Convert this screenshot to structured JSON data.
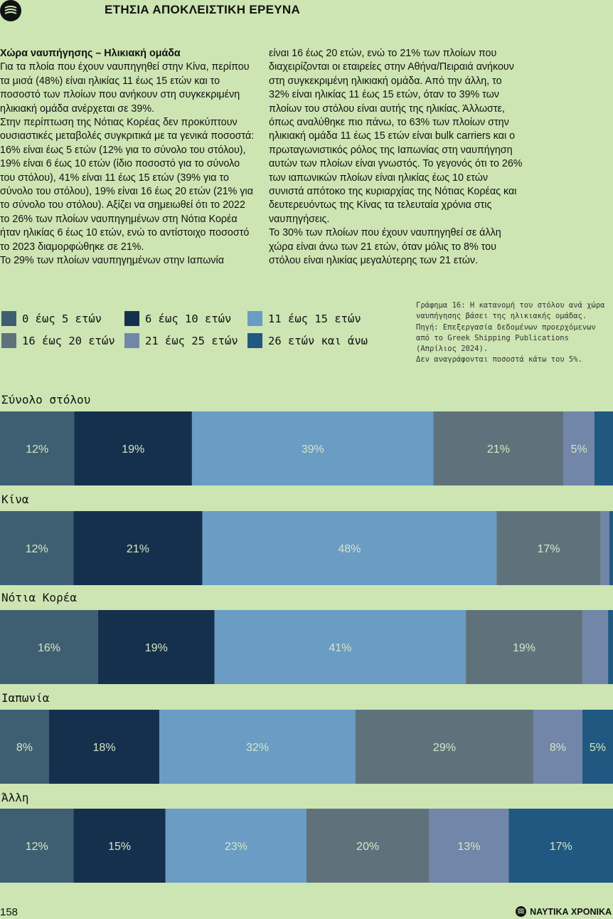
{
  "header": {
    "title": "ΕΤΗΣΙΑ ΑΠΟΚΛΕΙΣΤΙΚΗ ΕΡΕΥΝΑ"
  },
  "article": {
    "subheading": "Χώρα ναυπήγησης – Ηλικιακή ομάδα",
    "left_paragraphs": [
      "Για τα πλοία που έχουν ναυπηγηθεί στην Κίνα, περίπου τα μισά (48%) είναι ηλικίας 11 έως 15 ετών και το ποσοστό των πλοίων που ανήκουν στη συγκεκριμένη ηλικιακή ομάδα ανέρχεται σε 39%.",
      "Στην περίπτωση της Νότιας Κορέας δεν προκύπτουν ουσιαστικές μεταβολές συγκριτικά με τα γενικά ποσοστά: 16% είναι έως 5 ετών (12% για το σύνολο του στόλου), 19% είναι 6 έως 10 ετών (ίδιο ποσοστό για το σύνολο του στόλου), 41% είναι 11 έως 15 ετών (39% για το σύνολο του στόλου), 19% είναι 16 έως 20 ετών (21% για το σύνολο του στόλου). Αξίζει να σημειωθεί ότι το 2022 το 26% των πλοίων ναυπηγημένων στη Νότια Κορέα ήταν ηλικίας 6 έως 10 ετών, ενώ το αντίστοιχο ποσοστό το 2023 διαμορφώθηκε σε 21%.",
      "Το 29% των πλοίων ναυπηγημένων στην Ιαπωνία"
    ],
    "right_paragraphs": [
      "είναι 16 έως 20 ετών, ενώ το 21% των πλοίων που διαχειρίζονται οι εταιρείες στην Αθήνα/Πειραιά ανήκουν στη συγκεκριμένη ηλικιακή ομάδα. Από την άλλη, το 32% είναι ηλικίας 11 έως 15 ετών, όταν το 39% των πλοίων του στόλου είναι αυτής της ηλικίας. Άλλωστε, όπως αναλύθηκε πιο πάνω, το 63% των πλοίων στην ηλικιακή ομάδα 11 έως 15 ετών είναι bulk carriers και ο πρωταγωνιστικός ρόλος της Ιαπωνίας στη ναυπήγηση αυτών των πλοίων είναι γνωστός. Το γεγονός ότι το 26% των ιαπωνικών πλοίων είναι ηλικίας έως 10 ετών συνιστά απότοκο της κυριαρχίας της Νότιας Κορέας και δευτερευόντως της Κίνας τα τελευταία χρόνια στις ναυπηγήσεις.",
      "Το 30% των πλοίων που έχουν ναυπηγηθεί σε άλλη χώρα είναι άνω των 21 ετών, όταν μόλις το 8% του στόλου είναι ηλικίας μεγαλύτερης των 21 ετών."
    ]
  },
  "caption": [
    "Γράφημα 16: Η κατανομή του στόλου ανά χώρα ναυπήγησης βάσει της ηλικιακής ομάδας.",
    "Πηγή: Επεξεργασία δεδομένων προερχόμενων από το Greek Shipping Publications (Απρίλιος 2024).",
    "Δεν αναγράφονται ποσοστά κάτω του 5%."
  ],
  "colors": {
    "background": "#cde5b3",
    "text_on_bar": "#d6e6c4"
  },
  "chart_data": {
    "type": "bar",
    "orientation": "horizontal-stacked-100",
    "label_threshold": 5,
    "series": [
      {
        "name": "0 έως 5 ετών",
        "color": "#3e5f72"
      },
      {
        "name": "6 έως 10 ετών",
        "color": "#15304d"
      },
      {
        "name": "11 έως 15 ετών",
        "color": "#6a9cc4"
      },
      {
        "name": "16 έως 20 ετών",
        "color": "#5f727c"
      },
      {
        "name": "21 έως 25 ετών",
        "color": "#7186a8"
      },
      {
        "name": "26 ετών και άνω",
        "color": "#215881"
      }
    ],
    "groups": [
      {
        "label": "Σύνολο στόλου",
        "values": [
          12,
          19,
          39,
          21,
          5,
          3
        ]
      },
      {
        "label": "Κίνα",
        "values": [
          12,
          21,
          48,
          17,
          1.4,
          0.6
        ]
      },
      {
        "label": "Νότια Κορέα",
        "values": [
          16,
          19,
          41,
          19,
          4.2,
          0.8
        ]
      },
      {
        "label": "Ιαπωνία",
        "values": [
          8,
          18,
          32,
          29,
          8,
          5
        ]
      },
      {
        "label": "Άλλη",
        "values": [
          12,
          15,
          23,
          20,
          13,
          17
        ]
      }
    ]
  },
  "footer": {
    "page_number": "158",
    "brand": "ΝΑΥΤΙΚΑ ΧΡΟΝΙΚΑ"
  }
}
